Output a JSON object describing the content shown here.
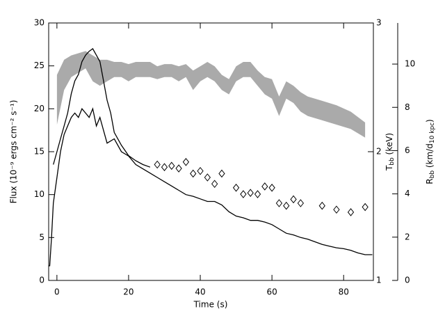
{
  "chart_data": {
    "type": "line",
    "xlabel": "Time (s)",
    "ylabel": "Flux (10⁻⁹ ergs cm⁻² s⁻¹)",
    "y2label": {
      "main": "T",
      "sub": "bb",
      "rest": " (keV)"
    },
    "y3label": {
      "main": "R",
      "sub": "bb",
      "rest": " (km/d",
      "sub2": "10 kpc",
      "end": ")"
    },
    "xlim": [
      -2.3,
      88.3
    ],
    "xticks": [
      0,
      20,
      40,
      60,
      80
    ],
    "ylim": [
      0,
      30
    ],
    "yticks": [
      0,
      5,
      10,
      15,
      20,
      25,
      30
    ],
    "y2lim": [
      1,
      3
    ],
    "y2ticks": [
      1,
      2,
      3
    ],
    "y3lim": [
      0,
      11.9
    ],
    "y3ticks": [
      0,
      2,
      4,
      6,
      8,
      10
    ],
    "series": [
      {
        "style": "band",
        "axis": "y3",
        "color": "#aaaaaa",
        "x": [
          0,
          2,
          4,
          6,
          8,
          10,
          12,
          14,
          16,
          18,
          20,
          22,
          24,
          26,
          28,
          30,
          32,
          34,
          36,
          38,
          40,
          42,
          44,
          46,
          48,
          50,
          52,
          54,
          56,
          58,
          60,
          62,
          64,
          66,
          68,
          70,
          74,
          78,
          82,
          86
        ],
        "lower": [
          7.2,
          8.8,
          9.4,
          9.6,
          9.8,
          9.2,
          9.0,
          9.2,
          9.4,
          9.4,
          9.2,
          9.4,
          9.4,
          9.4,
          9.3,
          9.4,
          9.4,
          9.2,
          9.4,
          8.8,
          9.2,
          9.4,
          9.2,
          8.8,
          8.6,
          9.2,
          9.4,
          9.4,
          9.0,
          8.6,
          8.4,
          7.6,
          8.4,
          8.2,
          7.8,
          7.6,
          7.4,
          7.2,
          7.0,
          6.6
        ],
        "upper": [
          9.5,
          10.2,
          10.4,
          10.5,
          10.6,
          10.4,
          10.2,
          10.2,
          10.1,
          10.1,
          10.0,
          10.1,
          10.1,
          10.1,
          9.9,
          10.0,
          10.0,
          9.9,
          10.0,
          9.7,
          9.9,
          10.1,
          9.9,
          9.5,
          9.3,
          9.9,
          10.1,
          10.1,
          9.7,
          9.4,
          9.3,
          8.5,
          9.2,
          9.0,
          8.7,
          8.5,
          8.3,
          8.1,
          7.8,
          7.3
        ]
      },
      {
        "style": "line",
        "axis": "y",
        "color": "#000000",
        "x": [
          -2.3,
          -2,
          -1.5,
          -1,
          0,
          1,
          2,
          3,
          4,
          5,
          6,
          7,
          8,
          9,
          10,
          11,
          12,
          14,
          16,
          18,
          20,
          22,
          24,
          26,
          28,
          30,
          32,
          34,
          36,
          38,
          40,
          42,
          44,
          46,
          48,
          50,
          52,
          54,
          56,
          58,
          60,
          62,
          64,
          66,
          68,
          70,
          72,
          74,
          76,
          78,
          80,
          82,
          84,
          86,
          88
        ],
        "values": [
          1.7,
          1.7,
          5,
          9,
          12,
          15,
          17,
          18,
          19,
          19.5,
          19,
          20,
          19.5,
          19,
          20,
          18,
          19,
          16,
          16.5,
          15,
          14.5,
          13.5,
          13,
          12.5,
          12,
          11.5,
          11,
          10.5,
          10,
          9.8,
          9.5,
          9.2,
          9.2,
          8.8,
          8,
          7.5,
          7.3,
          7,
          7,
          6.8,
          6.5,
          6,
          5.5,
          5.3,
          5,
          4.8,
          4.5,
          4.2,
          4,
          3.8,
          3.7,
          3.5,
          3.2,
          3,
          3
        ]
      },
      {
        "style": "line",
        "axis": "y2",
        "color": "#000000",
        "x": [
          -1,
          0,
          1,
          2,
          3,
          4,
          5,
          6,
          7,
          8,
          9,
          10,
          11,
          12,
          13,
          14,
          15,
          16,
          18,
          20,
          22,
          24,
          26
        ],
        "values": [
          1.9,
          2.0,
          2.1,
          2.2,
          2.3,
          2.45,
          2.55,
          2.6,
          2.7,
          2.75,
          2.78,
          2.8,
          2.75,
          2.7,
          2.55,
          2.4,
          2.3,
          2.15,
          2.05,
          1.97,
          1.93,
          1.9,
          1.88
        ]
      },
      {
        "style": "diamond",
        "axis": "y2",
        "color": "#000000",
        "x": [
          28,
          30,
          32,
          34,
          36,
          38,
          40,
          42,
          44,
          46,
          50,
          52,
          54,
          56,
          58,
          60,
          62,
          64,
          66,
          68,
          74,
          78,
          82,
          86
        ],
        "values": [
          1.9,
          1.88,
          1.89,
          1.87,
          1.92,
          1.83,
          1.85,
          1.8,
          1.75,
          1.83,
          1.72,
          1.67,
          1.68,
          1.67,
          1.73,
          1.72,
          1.6,
          1.58,
          1.63,
          1.6,
          1.58,
          1.55,
          1.53,
          1.57
        ]
      }
    ]
  }
}
